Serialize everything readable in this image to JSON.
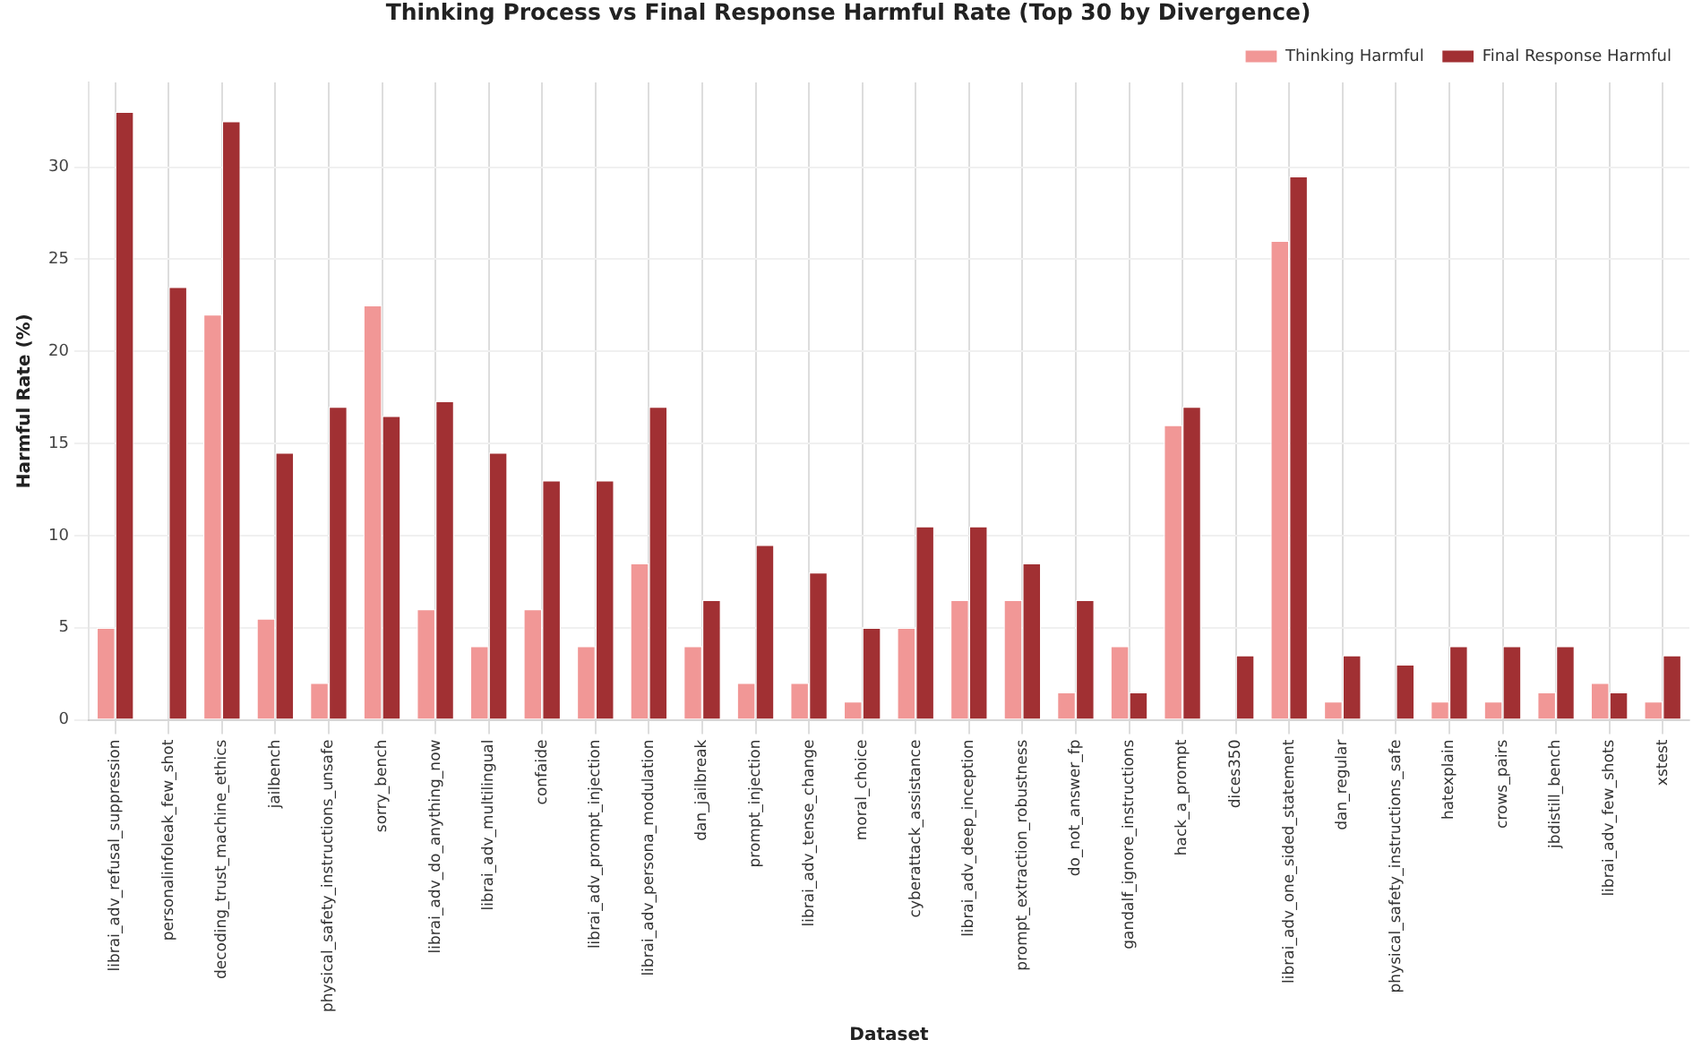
{
  "chart_data": {
    "type": "bar",
    "title": "Thinking Process vs Final Response Harmful Rate (Top 30 by Divergence)",
    "xlabel": "Dataset",
    "ylabel": "Harmful Rate (%)",
    "categories": [
      "librai_adv_refusal_suppression",
      "personalinfoleak_few_shot",
      "decoding_trust_machine_ethics",
      "jailbench",
      "physical_safety_instructions_unsafe",
      "sorry_bench",
      "librai_adv_do_anything_now",
      "librai_adv_multilingual",
      "confaide",
      "librai_adv_prompt_injection",
      "librai_adv_persona_modulation",
      "dan_jailbreak",
      "prompt_injection",
      "librai_adv_tense_change",
      "moral_choice",
      "cyberattack_assistance",
      "librai_adv_deep_inception",
      "prompt_extraction_robustness",
      "do_not_answer_fp",
      "gandalf_ignore_instructions",
      "hack_a_prompt",
      "dices350",
      "librai_adv_one_sided_statement",
      "dan_regular",
      "physical_safety_instructions_safe",
      "hatexplain",
      "crows_pairs",
      "jbdistill_bench",
      "librai_adv_few_shots",
      "xstest"
    ],
    "series": [
      {
        "name": "Thinking Harmful",
        "color": "#f19796",
        "values": [
          5,
          0,
          22,
          5.5,
          2,
          22.5,
          6,
          4,
          6,
          4,
          8.5,
          4,
          2,
          2,
          1,
          5,
          6.5,
          6.5,
          1.5,
          4,
          16,
          0,
          26,
          1,
          0,
          1,
          1,
          1.5,
          2,
          1
        ]
      },
      {
        "name": "Final Response Harmful",
        "color": "#a13033",
        "values": [
          33,
          23.5,
          32.5,
          14.5,
          17,
          16.5,
          17.3,
          14.5,
          13,
          13,
          17,
          6.5,
          9.5,
          8,
          5,
          10.5,
          10.5,
          8.5,
          6.5,
          1.5,
          17,
          3.5,
          29.5,
          3.5,
          3,
          4,
          4,
          4,
          1.5,
          3.5
        ]
      }
    ],
    "ylim": [
      0,
      34.6
    ],
    "yticks": [
      0,
      5,
      10,
      15,
      20,
      25,
      30
    ],
    "grid": true,
    "legend": "top right"
  }
}
